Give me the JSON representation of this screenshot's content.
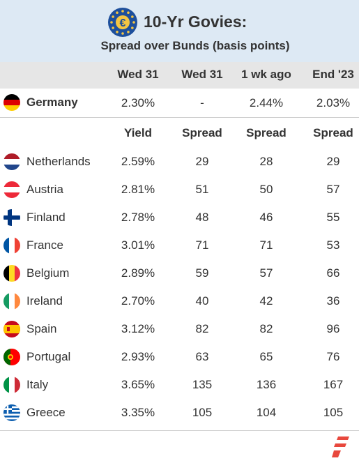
{
  "header": {
    "title": "10-Yr Govies:",
    "subtitle": "Spread over Bunds (basis points)"
  },
  "columns": [
    "Wed 31",
    "Wed 31",
    "1 wk ago",
    "End '23"
  ],
  "subcolumns": [
    "Yield",
    "Spread",
    "Spread",
    "Spread"
  ],
  "benchmark": {
    "country": "Germany",
    "flag": "de-flag-icon",
    "values": [
      "2.30%",
      "-",
      "2.44%",
      "2.03%"
    ]
  },
  "chart_data": {
    "type": "table",
    "title": "10-Yr Govies:",
    "subtitle": "Spread over Bunds (basis points)",
    "columns": [
      "Yield (Wed 31)",
      "Spread (Wed 31)",
      "Spread (1 wk ago)",
      "Spread (End '23)"
    ],
    "rows": [
      {
        "country": "Netherlands",
        "yield": "2.59%",
        "spread_wed": 29,
        "spread_1wk": 28,
        "spread_end23": 29
      },
      {
        "country": "Austria",
        "yield": "2.81%",
        "spread_wed": 51,
        "spread_1wk": 50,
        "spread_end23": 57
      },
      {
        "country": "Finland",
        "yield": "2.78%",
        "spread_wed": 48,
        "spread_1wk": 46,
        "spread_end23": 55
      },
      {
        "country": "France",
        "yield": "3.01%",
        "spread_wed": 71,
        "spread_1wk": 71,
        "spread_end23": 53
      },
      {
        "country": "Belgium",
        "yield": "2.89%",
        "spread_wed": 59,
        "spread_1wk": 57,
        "spread_end23": 66
      },
      {
        "country": "Ireland",
        "yield": "2.70%",
        "spread_wed": 40,
        "spread_1wk": 42,
        "spread_end23": 36
      },
      {
        "country": "Spain",
        "yield": "3.12%",
        "spread_wed": 82,
        "spread_1wk": 82,
        "spread_end23": 96
      },
      {
        "country": "Portugal",
        "yield": "2.93%",
        "spread_wed": 63,
        "spread_1wk": 65,
        "spread_end23": 76
      },
      {
        "country": "Italy",
        "yield": "3.65%",
        "spread_wed": 135,
        "spread_1wk": 136,
        "spread_end23": 167
      },
      {
        "country": "Greece",
        "yield": "3.35%",
        "spread_wed": 105,
        "spread_1wk": 104,
        "spread_end23": 105
      }
    ]
  },
  "flags": [
    "nl-flag-icon",
    "at-flag-icon",
    "fi-flag-icon",
    "fr-flag-icon",
    "be-flag-icon",
    "ie-flag-icon",
    "es-flag-icon",
    "pt-flag-icon",
    "it-flag-icon",
    "gr-flag-icon"
  ],
  "colors": {
    "header_bg": "#dde9f4",
    "colhead_bg": "#e6e6e6",
    "brand_red": "#e8483d",
    "eu_blue": "#1d4f9c",
    "eu_gold": "#f4c542"
  }
}
